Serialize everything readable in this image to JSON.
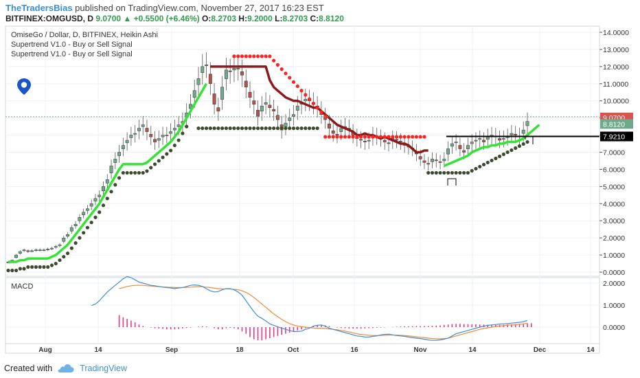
{
  "header": {
    "author": "TheTradersBias",
    "published_text": "published on TradingView.com, November 27, 2017 16:23 EST",
    "symbol": "BITFINEX:OMGUSD, D",
    "last": "9.0700",
    "change": "▲ +0.5500 (+6.46%)",
    "o_label": "O:",
    "o": "8.2703",
    "h_label": "H:",
    "h": "9.2000",
    "l_label": "L:",
    "l": "8.2703",
    "c_label": "C:",
    "c": "8.8120"
  },
  "legend": {
    "series_title": "OmiseGo / Dollar, D, BITFINEX, Heikin Ashi",
    "indicator_1": "Supertrend V1.0 - Buy or Sell Signal",
    "indicator_2": "Supertrend V1.0 - Buy or Sell Signal"
  },
  "macd_label": "MACD",
  "footer": {
    "created_with": "Created with",
    "brand": "TradingView",
    "logo_icon": "tradingview-cloud-icon"
  },
  "pin_icon": "map-pin-icon",
  "colors": {
    "up_candle": "#6fa88b",
    "down_candle": "#b5554a",
    "supertrend_up": "#33e433",
    "supertrend_down": "#8b1a1a",
    "dots_dark": "#3d4a2e",
    "dots_red": "#ff2020",
    "macd_line": "#3a8fd8",
    "signal_line": "#f08a30",
    "histogram": "#e8388a",
    "badge_last": "#d9534f",
    "badge_close": "#6fa88b",
    "badge_level": "#000000"
  },
  "chart_data": {
    "type": "candlestick",
    "title": "OmiseGo / Dollar, D, BITFINEX, Heikin Ashi",
    "x_ticks": [
      "Aug",
      "14",
      "Sep",
      "18",
      "Oct",
      "16",
      "Nov",
      "14",
      "Dec",
      "14"
    ],
    "price_axis": {
      "ticks": [
        "14.0000",
        "13.0000",
        "12.0000",
        "11.0000",
        "10.0000",
        "9.0000",
        "8.0000",
        "7.0000",
        "6.0000",
        "5.0000",
        "4.0000",
        "3.0000",
        "2.0000",
        "1.0000",
        "0.0000"
      ],
      "ylim": [
        0,
        14.0
      ]
    },
    "price_badges": [
      {
        "label": "last",
        "value": "9.0700"
      },
      {
        "label": "close",
        "value": "8.8120"
      },
      {
        "label": "level",
        "value": "7.9210"
      }
    ],
    "horizontal_level": 7.921,
    "heikin_ashi_close": [
      0.6,
      0.7,
      1.0,
      1.2,
      1.3,
      1.2,
      1.25,
      1.3,
      1.3,
      1.3,
      1.35,
      1.4,
      1.5,
      1.6,
      2.0,
      2.2,
      2.6,
      2.8,
      3.2,
      3.5,
      3.7,
      4.0,
      4.3,
      4.5,
      5.0,
      5.4,
      6.2,
      6.6,
      7.0,
      7.4,
      7.7,
      8.0,
      8.1,
      8.4,
      8.6,
      8.2,
      7.9,
      7.6,
      7.8,
      8.0,
      8.0,
      8.2,
      8.4,
      8.6,
      8.8,
      9.3,
      9.8,
      10.6,
      11.3,
      12.0,
      12.1,
      11.0,
      9.8,
      9.4,
      10.8,
      11.8,
      11.7,
      11.9,
      11.9,
      11.5,
      10.8,
      10.2,
      9.8,
      9.1,
      9.7,
      9.9,
      9.6,
      9.4,
      8.9,
      8.3,
      8.7,
      9.0,
      9.2,
      9.7,
      9.9,
      10.1,
      10.0,
      9.8,
      9.6,
      9.2,
      8.9,
      8.4,
      8.1,
      8.0,
      8.4,
      8.5,
      8.3,
      8.0,
      7.8,
      7.7,
      7.6,
      7.7,
      8.0,
      7.9,
      7.8,
      7.6,
      7.5,
      7.8,
      7.7,
      7.6,
      7.4,
      7.3,
      7.2,
      6.9,
      6.6,
      6.4,
      6.3,
      6.6,
      6.5,
      6.4,
      6.6,
      7.2,
      7.5,
      7.6,
      7.2,
      7.0,
      7.4,
      7.6,
      7.7,
      7.8,
      7.6,
      7.9,
      8.0,
      7.9,
      7.7,
      7.8,
      7.9,
      8.1,
      8.0,
      7.9,
      8.3,
      8.8
    ],
    "supertrend_upper": [
      null,
      null,
      null,
      null,
      null,
      null,
      null,
      null,
      null,
      null,
      null,
      null,
      null,
      null,
      null,
      null,
      null,
      null,
      null,
      null,
      null,
      null,
      null,
      null,
      null,
      null,
      null,
      null,
      null,
      null,
      null,
      null,
      null,
      null,
      null,
      null,
      null,
      null,
      null,
      null,
      null,
      null,
      null,
      null,
      null,
      null,
      null,
      null,
      null,
      null,
      null,
      12.0,
      12.0,
      12.0,
      12.0,
      12.0,
      12.0,
      12.0,
      12.0,
      12.0,
      12.0,
      12.0,
      12.0,
      12.0,
      12.0,
      12.0,
      11.2,
      10.8,
      10.6,
      10.4,
      10.2,
      10.1,
      10.0,
      10.0,
      9.9,
      9.8,
      9.7,
      9.6,
      9.6,
      9.4,
      9.2,
      9.0,
      8.8,
      8.6,
      8.5,
      8.4,
      8.3,
      8.2,
      8.0,
      8.0,
      8.1,
      8.0,
      8.0,
      7.9,
      7.8,
      7.9,
      7.8,
      7.7,
      7.6,
      7.5,
      7.5,
      7.4,
      7.2,
      7.0,
      7.0,
      7.1,
      7.1,
      null,
      null,
      null,
      null,
      null,
      null,
      null,
      null,
      null,
      null,
      null,
      null,
      null,
      null,
      null,
      null,
      null,
      null,
      null,
      null,
      null,
      null,
      null,
      null,
      null,
      null,
      null
    ],
    "supertrend_lower": [
      0.6,
      0.6,
      0.6,
      0.7,
      0.7,
      0.8,
      0.8,
      0.8,
      0.8,
      0.8,
      0.8,
      0.9,
      1.0,
      1.2,
      1.4,
      1.6,
      1.9,
      2.2,
      2.5,
      2.8,
      3.1,
      3.4,
      3.7,
      4.0,
      4.4,
      4.8,
      5.2,
      5.6,
      6.0,
      6.3,
      6.3,
      6.3,
      6.3,
      6.3,
      6.3,
      6.4,
      6.6,
      6.8,
      7.0,
      7.2,
      7.4,
      7.6,
      7.9,
      8.2,
      8.6,
      9.0,
      9.4,
      9.8,
      10.2,
      10.6,
      11.0,
      null,
      null,
      null,
      null,
      null,
      null,
      null,
      null,
      null,
      null,
      null,
      null,
      null,
      null,
      null,
      null,
      null,
      null,
      null,
      null,
      null,
      null,
      null,
      null,
      null,
      null,
      null,
      null,
      null,
      null,
      null,
      null,
      null,
      null,
      null,
      null,
      null,
      null,
      null,
      null,
      null,
      null,
      null,
      null,
      null,
      null,
      null,
      null,
      null,
      null,
      null,
      null,
      null,
      null,
      null,
      null,
      null,
      null,
      null,
      6.2,
      6.3,
      6.4,
      6.5,
      6.6,
      6.7,
      6.8,
      7.0,
      7.1,
      7.2,
      7.3,
      7.3,
      7.4,
      7.4,
      7.5,
      7.5,
      7.6,
      7.6,
      7.6,
      7.7,
      7.8,
      8.0,
      8.2,
      8.4,
      8.6
    ],
    "macd": {
      "ylim": [
        -0.7,
        2.3
      ],
      "ticks": [
        "2.0000",
        "1.0000",
        "0.0000"
      ],
      "macd_line": [
        null,
        null,
        null,
        null,
        null,
        null,
        null,
        null,
        null,
        null,
        null,
        null,
        null,
        null,
        null,
        null,
        null,
        null,
        null,
        null,
        null,
        0.98,
        1.05,
        1.2,
        1.4,
        1.6,
        1.75,
        1.9,
        2.05,
        2.2,
        2.3,
        2.25,
        2.15,
        2.05,
        2.0,
        1.95,
        1.9,
        1.88,
        1.85,
        1.82,
        1.8,
        1.78,
        1.75,
        1.78,
        1.8,
        1.85,
        1.9,
        1.92,
        1.9,
        1.85,
        1.75,
        1.65,
        1.6,
        1.62,
        1.7,
        1.75,
        1.75,
        1.7,
        1.6,
        1.45,
        1.2,
        0.95,
        0.7,
        0.5,
        0.4,
        0.28,
        0.15,
        0.08,
        0.02,
        -0.05,
        -0.1,
        -0.15,
        -0.2,
        -0.2,
        -0.18,
        -0.1,
        -0.05,
        0.05,
        0.08,
        0.1,
        0.05,
        -0.05,
        -0.1,
        -0.15,
        -0.2,
        -0.25,
        -0.3,
        -0.35,
        -0.4,
        -0.42,
        -0.45,
        -0.45,
        -0.42,
        -0.4,
        -0.35,
        -0.33,
        -0.32,
        -0.35,
        -0.38,
        -0.4,
        -0.42,
        -0.45,
        -0.48,
        -0.5,
        -0.52,
        -0.55,
        -0.58,
        -0.6,
        -0.6,
        -0.58,
        -0.55,
        -0.5,
        -0.4,
        -0.3,
        -0.25,
        -0.2,
        -0.15,
        -0.1,
        -0.05,
        0.0,
        0.05,
        0.08,
        0.1,
        0.12,
        0.14,
        0.15,
        0.16,
        0.18,
        0.2,
        0.22,
        0.25,
        0.3
      ],
      "signal_line": [
        null,
        null,
        null,
        null,
        null,
        null,
        null,
        null,
        null,
        null,
        null,
        null,
        null,
        null,
        null,
        null,
        null,
        null,
        null,
        null,
        null,
        null,
        null,
        null,
        null,
        null,
        null,
        null,
        1.75,
        1.8,
        1.85,
        1.88,
        1.9,
        1.9,
        1.9,
        1.88,
        1.87,
        1.85,
        1.84,
        1.83,
        1.82,
        1.81,
        1.8,
        1.8,
        1.8,
        1.81,
        1.82,
        1.83,
        1.84,
        1.84,
        1.82,
        1.8,
        1.77,
        1.75,
        1.74,
        1.74,
        1.73,
        1.72,
        1.7,
        1.65,
        1.58,
        1.48,
        1.35,
        1.2,
        1.05,
        0.9,
        0.75,
        0.6,
        0.48,
        0.35,
        0.25,
        0.16,
        0.1,
        0.05,
        0.02,
        0.0,
        -0.02,
        -0.04,
        -0.05,
        -0.05,
        -0.06,
        -0.08,
        -0.1,
        -0.12,
        -0.15,
        -0.18,
        -0.22,
        -0.26,
        -0.3,
        -0.33,
        -0.35,
        -0.37,
        -0.38,
        -0.38,
        -0.38,
        -0.37,
        -0.36,
        -0.36,
        -0.36,
        -0.37,
        -0.38,
        -0.4,
        -0.42,
        -0.44,
        -0.46,
        -0.48,
        -0.5,
        -0.52,
        -0.53,
        -0.53,
        -0.52,
        -0.5,
        -0.45,
        -0.4,
        -0.35,
        -0.3,
        -0.25,
        -0.2,
        -0.15,
        -0.1,
        -0.06,
        -0.03,
        0.0,
        0.03,
        0.05,
        0.07,
        0.09,
        0.1,
        0.11,
        0.13,
        0.15,
        0.18
      ],
      "histogram": [
        null,
        null,
        null,
        null,
        null,
        null,
        null,
        null,
        null,
        null,
        null,
        null,
        null,
        null,
        null,
        null,
        null,
        null,
        null,
        null,
        null,
        null,
        null,
        null,
        null,
        null,
        null,
        null,
        0.55,
        0.45,
        0.38,
        0.3,
        0.22,
        0.12,
        0.05,
        0.0,
        -0.02,
        -0.05,
        -0.06,
        -0.08,
        -0.1,
        -0.1,
        -0.1,
        -0.08,
        -0.06,
        -0.04,
        -0.02,
        0.0,
        0.02,
        0.04,
        0.03,
        0.0,
        -0.05,
        -0.1,
        -0.1,
        -0.05,
        -0.03,
        -0.05,
        -0.1,
        -0.2,
        -0.3,
        -0.45,
        -0.55,
        -0.6,
        -0.6,
        -0.55,
        -0.5,
        -0.45,
        -0.4,
        -0.35,
        -0.3,
        -0.25,
        -0.2,
        -0.15,
        -0.1,
        -0.05,
        0.0,
        0.05,
        0.08,
        0.1,
        0.08,
        0.05,
        0.0,
        -0.02,
        -0.04,
        -0.05,
        -0.06,
        -0.07,
        -0.07,
        -0.07,
        -0.06,
        -0.05,
        -0.04,
        -0.03,
        -0.02,
        -0.01,
        0.0,
        0.01,
        0.02,
        0.03,
        0.04,
        0.04,
        0.04,
        0.05,
        0.05,
        0.05,
        0.05,
        0.06,
        0.07,
        0.08,
        0.1,
        0.12,
        0.14,
        0.15,
        0.15,
        0.14,
        0.14,
        0.13,
        0.13,
        0.12,
        0.12,
        0.11,
        0.11,
        0.1,
        0.1,
        0.11,
        0.12,
        0.13,
        0.14,
        0.15,
        0.16,
        0.17,
        0.18
      ]
    }
  }
}
